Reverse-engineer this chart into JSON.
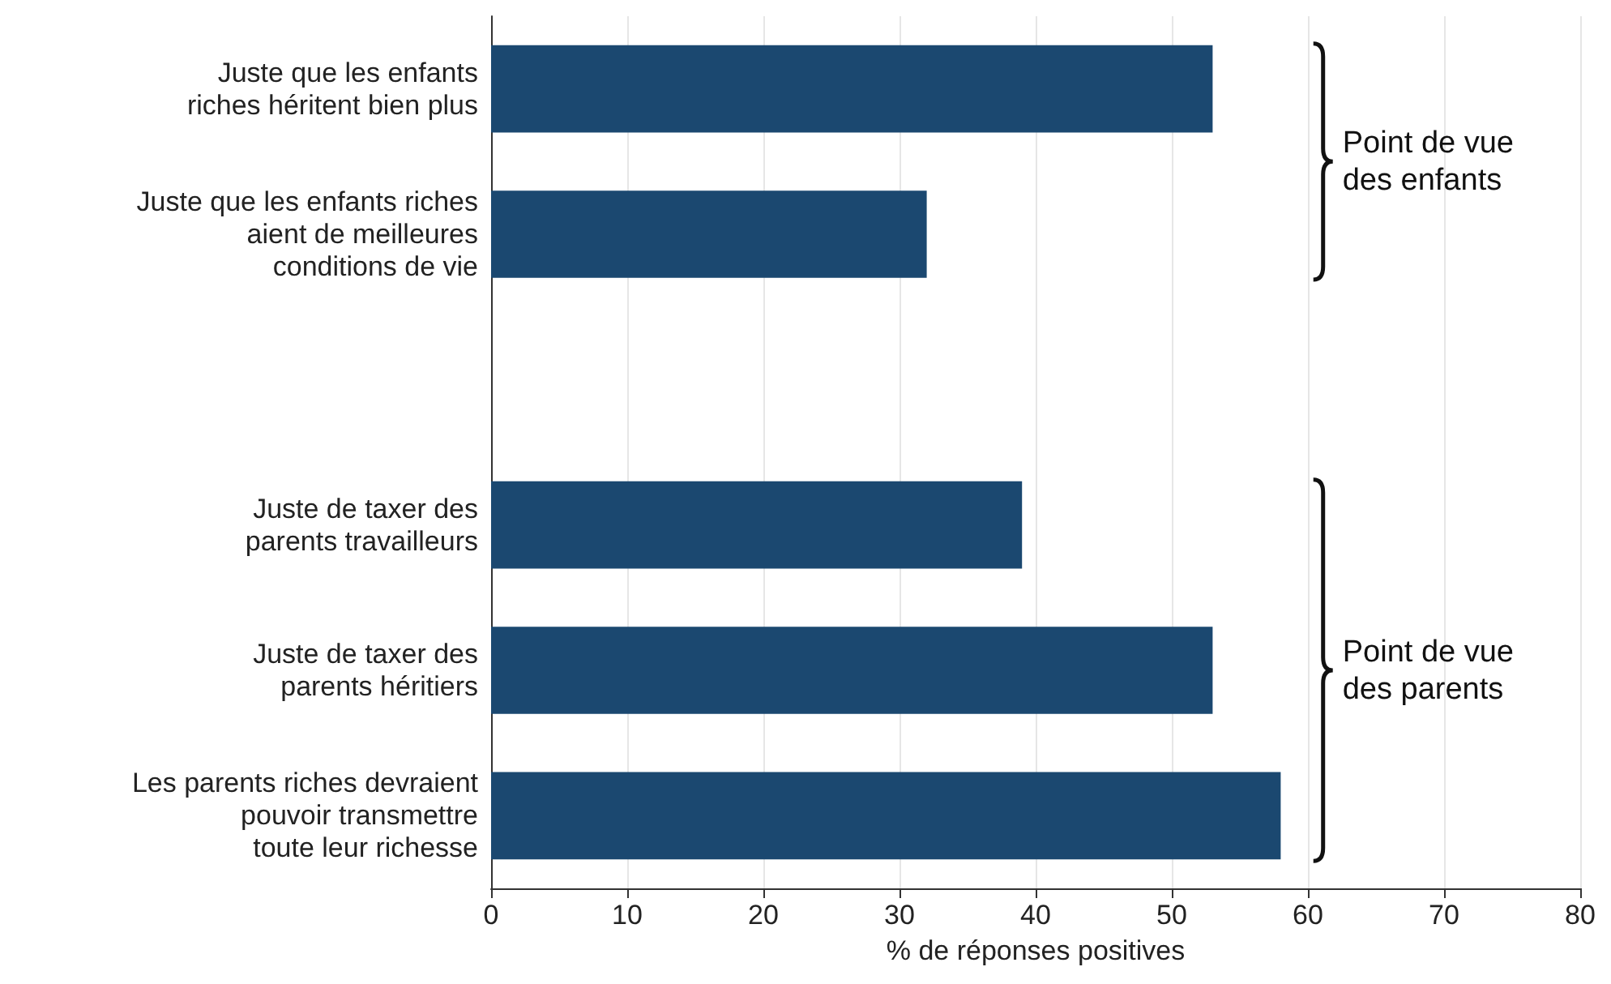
{
  "chart_data": {
    "type": "bar",
    "orientation": "horizontal",
    "categories": [
      "Juste que les enfants\nriches héritent bien plus",
      "Juste que les enfants riches\naient de meilleures\nconditions de vie",
      null,
      "Juste de taxer des\nparents travailleurs",
      "Juste de taxer des\nparents héritiers",
      "Les parents riches devraient\npouvoir transmettre\ntoute leur richesse"
    ],
    "values": [
      53,
      32,
      null,
      39,
      53,
      58
    ],
    "color": "#1b4870",
    "xlabel": "% de réponses positives",
    "xlim": [
      0,
      80
    ],
    "xticks": [
      0,
      10,
      20,
      30,
      40,
      50,
      60,
      70,
      80
    ],
    "grid": "x",
    "annotations": [
      "Point de vue\ndes enfants",
      "Point de vue\ndes parents"
    ]
  }
}
